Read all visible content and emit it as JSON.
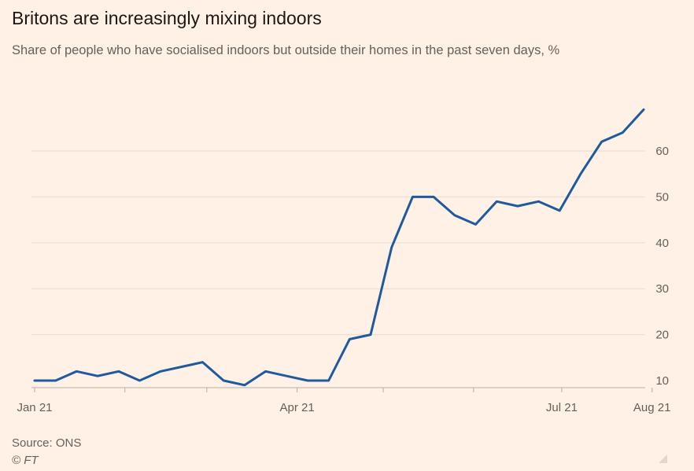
{
  "chart_data": {
    "type": "line",
    "title": "Britons are increasingly mixing indoors",
    "subtitle": "Share of people who have socialised indoors but outside their homes in the past seven days, %",
    "source": "Source: ONS",
    "copyright": "© FT",
    "xlabel": "",
    "ylabel": "",
    "x_tick_labels": [
      "Jan 21",
      "Apr 21",
      "Jul 21",
      "Aug 21"
    ],
    "y_ticks": [
      10,
      20,
      30,
      40,
      50,
      60
    ],
    "ylim": [
      9,
      70
    ],
    "grid": true,
    "line_color": "#1f5a9e",
    "series": [
      {
        "values": [
          10,
          10,
          12,
          11,
          12,
          10,
          12,
          13,
          14,
          10,
          9,
          12,
          11,
          10,
          10,
          19,
          20,
          39,
          50,
          50,
          46,
          44,
          49,
          48,
          49,
          47,
          55,
          62,
          64,
          69
        ]
      }
    ]
  }
}
